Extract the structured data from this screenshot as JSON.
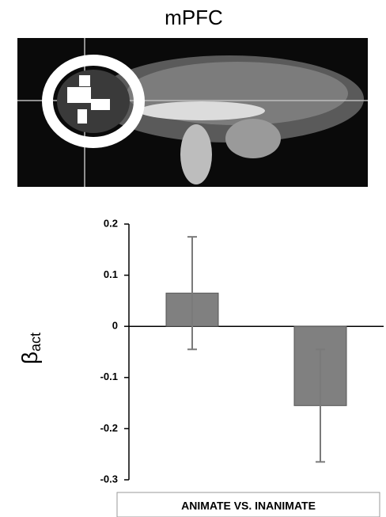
{
  "chart_data": {
    "type": "bar",
    "title": "mPFC",
    "ylabel": "β",
    "ylabel_subscript": "act",
    "xlabel": "ANIMATE VS. INANIMATE",
    "categories": [
      null,
      null
    ],
    "values": [
      0.065,
      -0.155
    ],
    "errors": [
      0.11,
      0.11
    ],
    "color": "#808080",
    "error_color": "#7a7a7a",
    "ylim": [
      -0.3,
      0.2
    ],
    "yticks": [
      -0.3,
      -0.2,
      -0.1,
      0,
      0.1,
      0.2
    ]
  }
}
